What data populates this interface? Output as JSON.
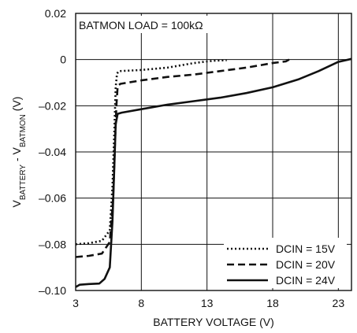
{
  "chart_data": {
    "type": "line",
    "xlabel": "BATTERY VOLTAGE (V)",
    "ylabel": {
      "prefix": "V",
      "sub1": "BATTERY",
      "middle": " - V",
      "sub2": "BATMON",
      "suffix": " (V)"
    },
    "annotation": "BATMON LOAD = 100kΩ",
    "xlim": [
      3,
      24
    ],
    "ylim": [
      -0.1,
      0.02
    ],
    "xticks": [
      3,
      8,
      13,
      18,
      23
    ],
    "xtick_labels": [
      "3",
      "8",
      "13",
      "18",
      "23"
    ],
    "yticks": [
      0.02,
      0,
      -0.02,
      -0.04,
      -0.06,
      -0.08,
      -0.1
    ],
    "ytick_labels": [
      "0.02",
      "0",
      "–0.02",
      "–0.04",
      "–0.06",
      "–0.08",
      "–0.10"
    ],
    "grid": true,
    "legend_position": "bottom-right",
    "series": [
      {
        "name": "DCIN = 15V",
        "style": "dotted",
        "x": [
          3,
          4,
          5,
          5.6,
          5.8,
          5.95,
          6.05,
          6.15,
          6.3,
          8,
          10,
          12,
          13.5,
          14.5
        ],
        "y": [
          -0.08,
          -0.0795,
          -0.0785,
          -0.074,
          -0.055,
          -0.03,
          -0.012,
          -0.006,
          -0.005,
          -0.0045,
          -0.0035,
          -0.0015,
          -0.0005,
          -0.0003
        ]
      },
      {
        "name": "DCIN = 20V",
        "style": "dashed",
        "x": [
          3,
          4,
          5,
          5.6,
          5.85,
          6.0,
          6.1,
          6.2,
          6.4,
          8,
          10,
          12,
          14,
          16,
          18,
          19,
          19.5
        ],
        "y": [
          -0.0855,
          -0.085,
          -0.084,
          -0.079,
          -0.06,
          -0.035,
          -0.02,
          -0.0115,
          -0.0105,
          -0.009,
          -0.0075,
          -0.0065,
          -0.005,
          -0.0035,
          -0.0015,
          -0.0008,
          0.0008
        ]
      },
      {
        "name": "DCIN = 24V",
        "style": "solid",
        "x": [
          3,
          3.3,
          4,
          4.8,
          5.2,
          5.6,
          5.8,
          5.95,
          6.05,
          6.2,
          6.5,
          8,
          10,
          12,
          14,
          16,
          18,
          20,
          21.5,
          23,
          24
        ],
        "y": [
          -0.0985,
          -0.0975,
          -0.0972,
          -0.097,
          -0.095,
          -0.09,
          -0.07,
          -0.045,
          -0.028,
          -0.0235,
          -0.023,
          -0.0215,
          -0.0195,
          -0.018,
          -0.0165,
          -0.0145,
          -0.012,
          -0.0085,
          -0.005,
          -0.001,
          0.0003
        ]
      }
    ]
  }
}
